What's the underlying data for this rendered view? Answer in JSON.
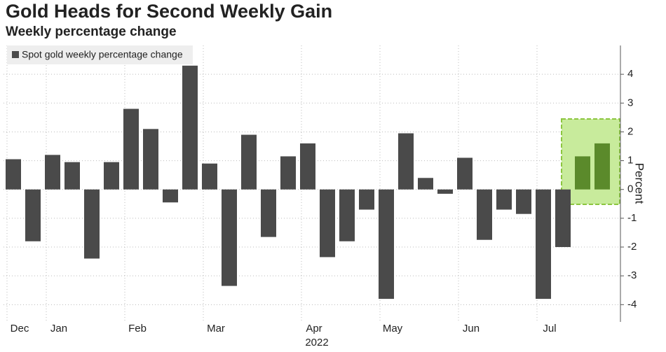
{
  "chart_data": {
    "type": "bar",
    "title": "Gold Heads for Second Weekly Gain",
    "subtitle": "Weekly percentage change",
    "legend": "Spot gold weekly percentage change",
    "y_label": "Percent",
    "x_sublabel": "2022",
    "categories": [
      "Dec",
      null,
      "Jan",
      null,
      null,
      null,
      "Feb",
      null,
      null,
      null,
      "Mar",
      null,
      null,
      null,
      null,
      "Apr",
      null,
      null,
      null,
      "May",
      null,
      null,
      null,
      "Jun",
      null,
      null,
      null,
      "Jul",
      null,
      null,
      null
    ],
    "values": [
      1.05,
      -1.8,
      1.2,
      0.95,
      -2.4,
      0.95,
      2.8,
      2.1,
      -0.45,
      4.3,
      0.9,
      -3.35,
      1.9,
      -1.65,
      1.15,
      1.6,
      -2.35,
      -1.8,
      -0.7,
      -3.8,
      1.95,
      0.4,
      -0.15,
      1.1,
      -1.75,
      -0.7,
      -0.85,
      -3.8,
      -2.0,
      1.15,
      1.6
    ],
    "bar_colors": [
      "#4a4a4a",
      "#4a4a4a",
      "#4a4a4a",
      "#4a4a4a",
      "#4a4a4a",
      "#4a4a4a",
      "#4a4a4a",
      "#4a4a4a",
      "#4a4a4a",
      "#4a4a4a",
      "#4a4a4a",
      "#4a4a4a",
      "#4a4a4a",
      "#4a4a4a",
      "#4a4a4a",
      "#4a4a4a",
      "#4a4a4a",
      "#4a4a4a",
      "#4a4a4a",
      "#4a4a4a",
      "#4a4a4a",
      "#4a4a4a",
      "#4a4a4a",
      "#4a4a4a",
      "#4a4a4a",
      "#4a4a4a",
      "#4a4a4a",
      "#4a4a4a",
      "#4a4a4a",
      "#5b8a2b",
      "#5b8a2b"
    ],
    "color": "#4a4a4a",
    "ylim": [
      -4.6,
      5
    ],
    "yticks": [
      -4,
      -3,
      -2,
      -1,
      0,
      1,
      2,
      3,
      4
    ],
    "grid": true
  }
}
